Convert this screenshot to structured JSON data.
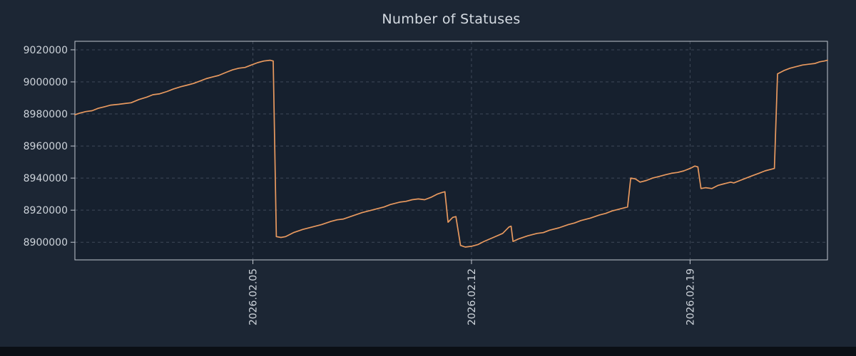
{
  "figure": {
    "background": "#1c2634",
    "plot_background": "#16202e",
    "bottom_bar_color": "#0b0f15"
  },
  "chart_data": {
    "type": "line",
    "title": "Number of Statuses",
    "xlabel": "",
    "ylabel": "",
    "grid": true,
    "legend_position": "none",
    "line_color": "#e8995f",
    "grid_color": "#8a94a6",
    "spine_color": "#c0c6cf",
    "text_color": "#cdd3da",
    "xlim": [
      0,
      24.1
    ],
    "ylim": [
      8889000,
      9025300
    ],
    "y_ticks": [
      8900000,
      8920000,
      8940000,
      8960000,
      8980000,
      9000000,
      9020000
    ],
    "x_ticks": [
      {
        "x": 5.7,
        "label": "2026.02.05"
      },
      {
        "x": 12.7,
        "label": "2026.02.12"
      },
      {
        "x": 19.7,
        "label": "2026.02.19"
      }
    ],
    "series": [
      {
        "name": "statuses",
        "points": [
          [
            0.0,
            8979500
          ],
          [
            0.15,
            8980500
          ],
          [
            0.35,
            8981500
          ],
          [
            0.55,
            8982000
          ],
          [
            0.75,
            8983500
          ],
          [
            0.95,
            8984500
          ],
          [
            1.15,
            8985500
          ],
          [
            1.4,
            8986000
          ],
          [
            1.6,
            8986500
          ],
          [
            1.8,
            8987000
          ],
          [
            2.05,
            8989000
          ],
          [
            2.3,
            8990500
          ],
          [
            2.5,
            8992000
          ],
          [
            2.7,
            8992500
          ],
          [
            2.95,
            8994000
          ],
          [
            3.15,
            8995500
          ],
          [
            3.4,
            8997000
          ],
          [
            3.6,
            8998000
          ],
          [
            3.8,
            8999000
          ],
          [
            4.0,
            9000500
          ],
          [
            4.2,
            9002000
          ],
          [
            4.4,
            9003000
          ],
          [
            4.6,
            9004000
          ],
          [
            4.85,
            9006000
          ],
          [
            5.05,
            9007500
          ],
          [
            5.25,
            9008500
          ],
          [
            5.45,
            9009000
          ],
          [
            5.65,
            9010500
          ],
          [
            5.85,
            9012000
          ],
          [
            6.05,
            9013000
          ],
          [
            6.25,
            9013500
          ],
          [
            6.35,
            9013000
          ],
          [
            6.45,
            8903500
          ],
          [
            6.6,
            8903000
          ],
          [
            6.75,
            8903500
          ],
          [
            7.0,
            8906000
          ],
          [
            7.3,
            8908000
          ],
          [
            7.6,
            8909500
          ],
          [
            7.9,
            8911000
          ],
          [
            8.2,
            8913000
          ],
          [
            8.4,
            8914000
          ],
          [
            8.6,
            8914500
          ],
          [
            8.9,
            8916500
          ],
          [
            9.2,
            8918500
          ],
          [
            9.5,
            8920000
          ],
          [
            9.7,
            8921000
          ],
          [
            9.9,
            8922000
          ],
          [
            10.1,
            8923500
          ],
          [
            10.4,
            8925000
          ],
          [
            10.6,
            8925500
          ],
          [
            10.8,
            8926500
          ],
          [
            11.0,
            8927000
          ],
          [
            11.2,
            8926500
          ],
          [
            11.4,
            8928000
          ],
          [
            11.6,
            8930000
          ],
          [
            11.75,
            8931000
          ],
          [
            11.85,
            8931500
          ],
          [
            11.95,
            8912500
          ],
          [
            12.1,
            8915500
          ],
          [
            12.2,
            8916000
          ],
          [
            12.35,
            8898000
          ],
          [
            12.5,
            8897000
          ],
          [
            12.7,
            8897500
          ],
          [
            12.9,
            8898500
          ],
          [
            13.1,
            8900500
          ],
          [
            13.4,
            8903000
          ],
          [
            13.7,
            8905500
          ],
          [
            13.9,
            8909500
          ],
          [
            13.97,
            8910000
          ],
          [
            14.03,
            8900500
          ],
          [
            14.2,
            8902000
          ],
          [
            14.5,
            8904000
          ],
          [
            14.8,
            8905500
          ],
          [
            15.0,
            8906000
          ],
          [
            15.2,
            8907500
          ],
          [
            15.5,
            8909000
          ],
          [
            15.8,
            8911000
          ],
          [
            16.0,
            8912000
          ],
          [
            16.2,
            8913500
          ],
          [
            16.5,
            8915000
          ],
          [
            16.8,
            8917000
          ],
          [
            17.0,
            8918000
          ],
          [
            17.2,
            8919500
          ],
          [
            17.5,
            8921000
          ],
          [
            17.7,
            8922000
          ],
          [
            17.8,
            8940000
          ],
          [
            17.95,
            8939500
          ],
          [
            18.1,
            8937500
          ],
          [
            18.3,
            8938500
          ],
          [
            18.5,
            8940000
          ],
          [
            18.7,
            8941000
          ],
          [
            18.9,
            8942000
          ],
          [
            19.1,
            8943000
          ],
          [
            19.3,
            8943500
          ],
          [
            19.5,
            8944500
          ],
          [
            19.7,
            8946000
          ],
          [
            19.85,
            8947500
          ],
          [
            19.95,
            8947000
          ],
          [
            20.05,
            8933500
          ],
          [
            20.2,
            8934000
          ],
          [
            20.4,
            8933500
          ],
          [
            20.6,
            8935500
          ],
          [
            20.8,
            8936500
          ],
          [
            21.0,
            8937500
          ],
          [
            21.1,
            8937000
          ],
          [
            21.3,
            8938500
          ],
          [
            21.5,
            8940000
          ],
          [
            21.7,
            8941500
          ],
          [
            21.9,
            8943000
          ],
          [
            22.1,
            8944500
          ],
          [
            22.3,
            8945500
          ],
          [
            22.4,
            8946000
          ],
          [
            22.5,
            9005000
          ],
          [
            22.7,
            9007000
          ],
          [
            22.9,
            9008500
          ],
          [
            23.1,
            9009500
          ],
          [
            23.3,
            9010500
          ],
          [
            23.5,
            9011000
          ],
          [
            23.7,
            9011500
          ],
          [
            23.85,
            9012500
          ],
          [
            24.0,
            9013000
          ],
          [
            24.1,
            9013500
          ]
        ]
      }
    ]
  }
}
